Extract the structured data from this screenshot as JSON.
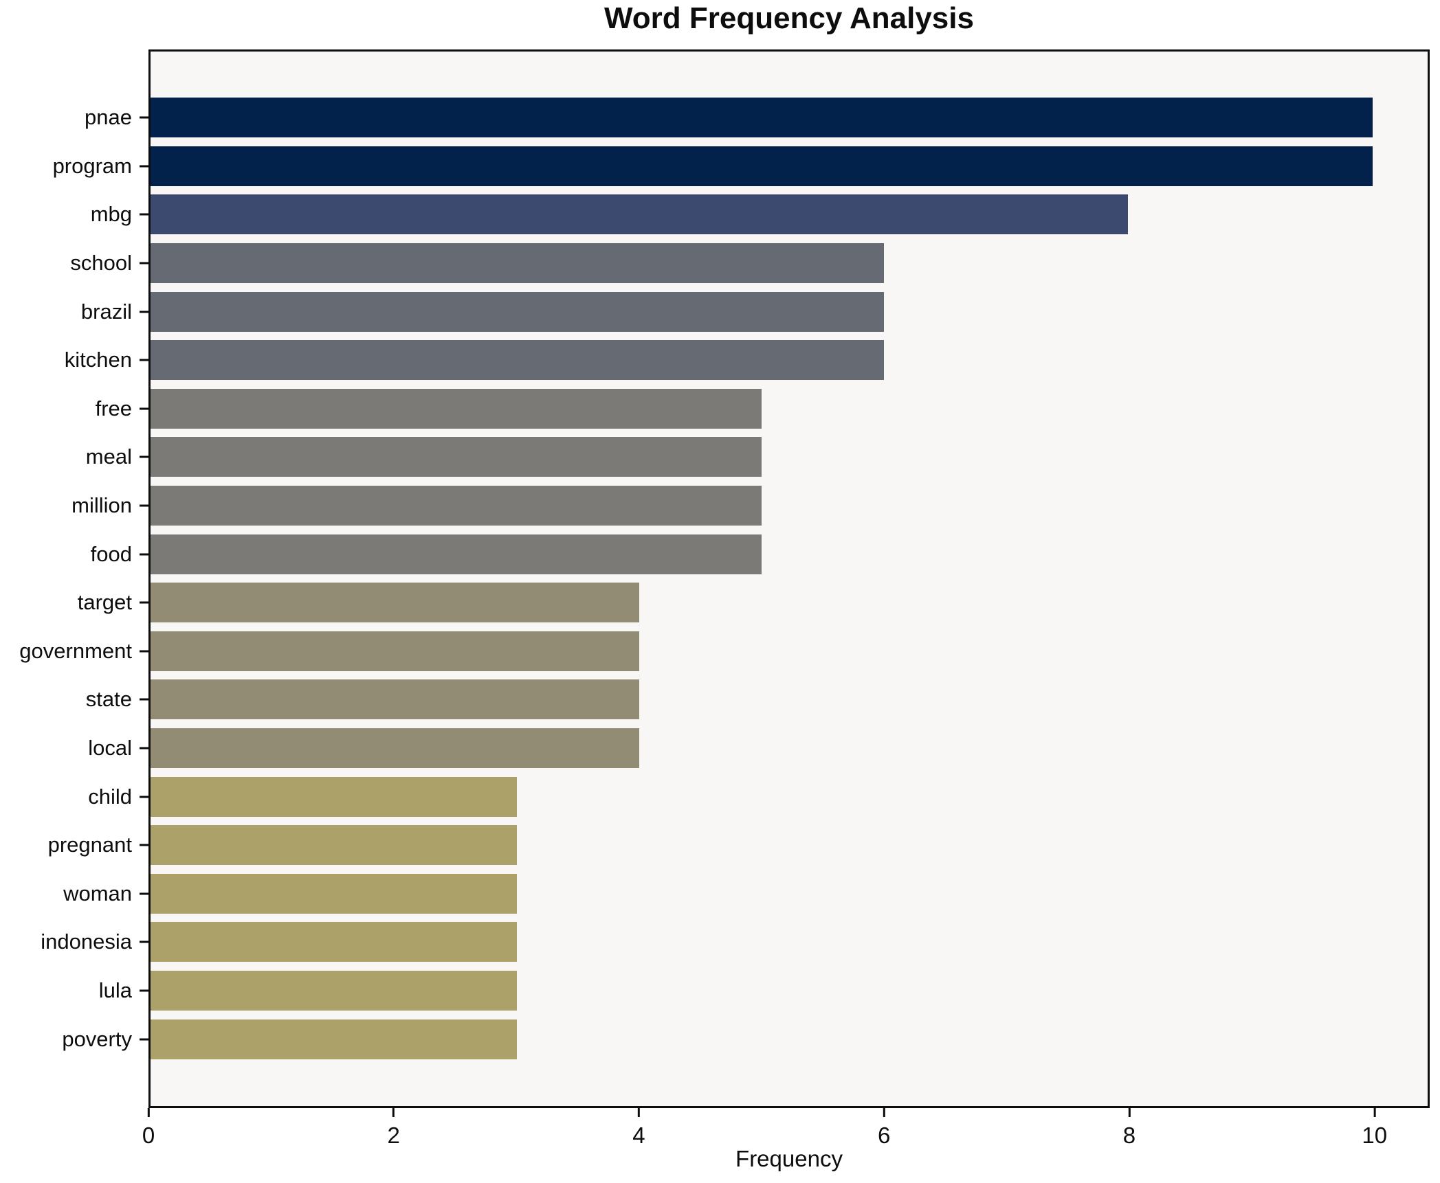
{
  "title": "Word Frequency Analysis",
  "chart_data": {
    "type": "bar",
    "orientation": "horizontal",
    "title": "Word Frequency Analysis",
    "xlabel": "Frequency",
    "ylabel": "",
    "categories": [
      "pnae",
      "program",
      "mbg",
      "school",
      "brazil",
      "kitchen",
      "free",
      "meal",
      "million",
      "food",
      "target",
      "government",
      "state",
      "local",
      "child",
      "pregnant",
      "woman",
      "indonesia",
      "lula",
      "poverty"
    ],
    "values": [
      10,
      10,
      8,
      6,
      6,
      6,
      5,
      5,
      5,
      5,
      4,
      4,
      4,
      4,
      3,
      3,
      3,
      3,
      3,
      3
    ],
    "bar_colors": [
      "#02224c",
      "#02224c",
      "#3d4a70",
      "#666a72",
      "#666a72",
      "#666a72",
      "#7b7a76",
      "#7b7a76",
      "#7b7a76",
      "#7b7a76",
      "#918c73",
      "#918c73",
      "#918c73",
      "#918c73",
      "#aba169",
      "#aba169",
      "#aba169",
      "#aba169",
      "#aba169",
      "#aba169"
    ],
    "xticks": [
      0,
      2,
      4,
      6,
      8,
      10
    ],
    "xlim": [
      0,
      10.45
    ],
    "grid": false,
    "legend": null,
    "plot_background": "#f8f7f5",
    "figure_background": "#ffffff",
    "spine_color": "#0d0d0d",
    "colormap": "cividis-reversed"
  }
}
